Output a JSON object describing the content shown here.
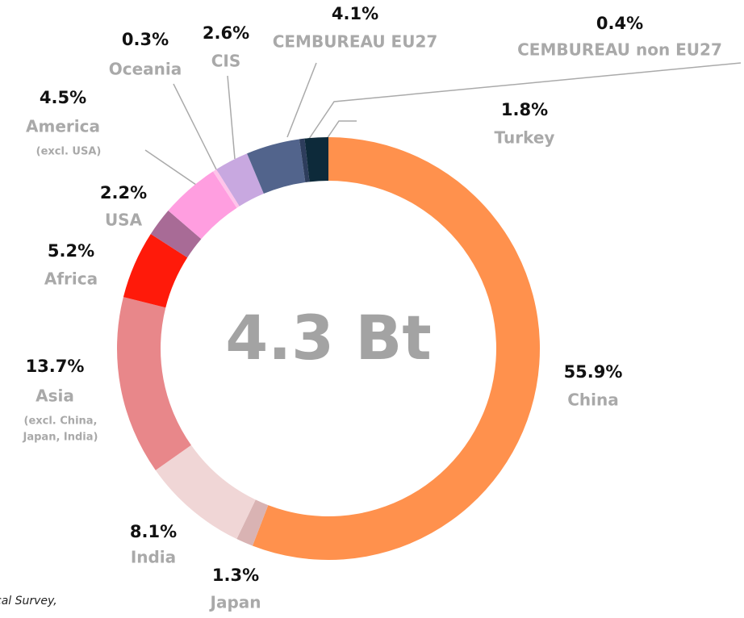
{
  "chart_data": {
    "type": "donut",
    "center_label": "4.3 Bt",
    "categories": [
      "China",
      "Japan",
      "India",
      "Asia",
      "Africa",
      "USA",
      "America",
      "Oceania",
      "CIS",
      "CEMBUREAU EU27",
      "CEMBUREAU non EU27",
      "Turkey"
    ],
    "sublabels": [
      null,
      null,
      null,
      [
        "(excl. China,",
        "Japan, India)"
      ],
      null,
      null,
      [
        "(excl. USA)"
      ],
      null,
      null,
      null,
      null,
      null
    ],
    "values": [
      55.9,
      1.3,
      8.1,
      13.7,
      5.2,
      2.2,
      4.5,
      0.3,
      2.6,
      4.1,
      0.4,
      1.8
    ],
    "value_labels": [
      "55.9%",
      "1.3%",
      "8.1%",
      "13.7%",
      "5.2%",
      "2.2%",
      "4.5%",
      "0.3%",
      "2.6%",
      "4.1%",
      "0.4%",
      "1.8%"
    ],
    "colors": [
      "#ff914d",
      "#d9b3b3",
      "#f0d6d6",
      "#e8878a",
      "#ff1a0a",
      "#a86b96",
      "#ff9ee0",
      "#ffc4ea",
      "#c8a8e0",
      "#52648c",
      "#2d3d5c",
      "#0d2a3a"
    ],
    "source": "cal Survey,"
  }
}
